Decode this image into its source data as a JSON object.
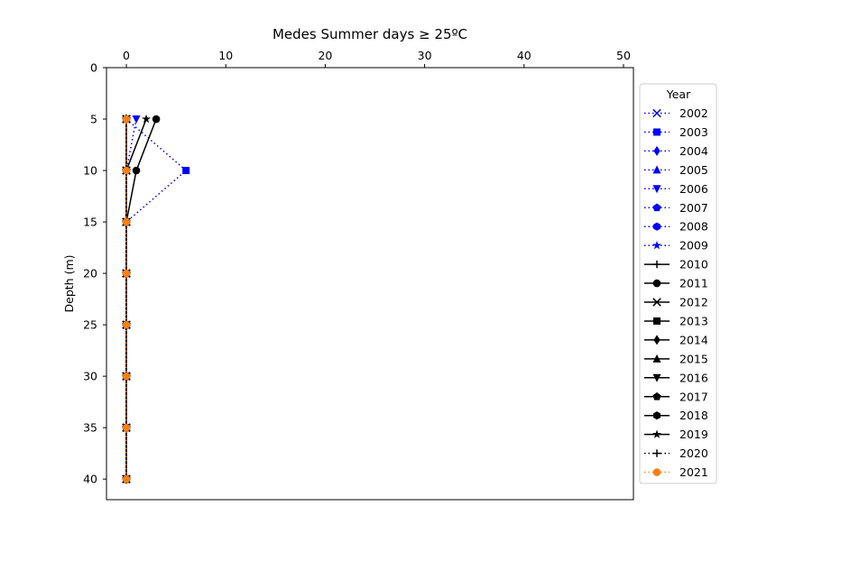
{
  "chart_data": {
    "type": "line",
    "title": "Medes Summer days ≥ 25ºC",
    "xlabel": "",
    "ylabel": "Depth (m)",
    "xlim": [
      -2,
      51
    ],
    "ylim": [
      42,
      0
    ],
    "x_axis_position": "top",
    "y_inverted": true,
    "x_ticks": [
      0,
      10,
      20,
      30,
      40,
      50
    ],
    "y_ticks": [
      0,
      5,
      10,
      15,
      20,
      25,
      30,
      35,
      40
    ],
    "depths": [
      5,
      10,
      15,
      20,
      25,
      30,
      35,
      40
    ],
    "grid": false,
    "legend": {
      "title": "Year",
      "placement": "right-outside"
    },
    "series": [
      {
        "name": "2002",
        "color": "#0000ff",
        "linestyle": "dotted",
        "marker": "x",
        "values": [
          0,
          0,
          0,
          0,
          0,
          0,
          0,
          0
        ]
      },
      {
        "name": "2003",
        "color": "#0000ff",
        "linestyle": "dotted",
        "marker": "square",
        "values": [
          0,
          6,
          0,
          0,
          0,
          0,
          0,
          0
        ]
      },
      {
        "name": "2004",
        "color": "#0000ff",
        "linestyle": "dotted",
        "marker": "diamond",
        "values": [
          0,
          0,
          0,
          0,
          0,
          0,
          0,
          0
        ]
      },
      {
        "name": "2005",
        "color": "#0000ff",
        "linestyle": "dotted",
        "marker": "triangle-up",
        "values": [
          0,
          0,
          0,
          0,
          0,
          0,
          0,
          0
        ]
      },
      {
        "name": "2006",
        "color": "#0000ff",
        "linestyle": "dotted",
        "marker": "triangle-down",
        "values": [
          1,
          0,
          0,
          0,
          0,
          0,
          0,
          0
        ]
      },
      {
        "name": "2007",
        "color": "#0000ff",
        "linestyle": "dotted",
        "marker": "pentagon",
        "values": [
          0,
          0,
          0,
          0,
          0,
          0,
          0,
          0
        ]
      },
      {
        "name": "2008",
        "color": "#0000ff",
        "linestyle": "dotted",
        "marker": "hexagon",
        "values": [
          0,
          0,
          0,
          0,
          0,
          0,
          0,
          0
        ]
      },
      {
        "name": "2009",
        "color": "#0000ff",
        "linestyle": "dotted",
        "marker": "star",
        "values": [
          0,
          0,
          0,
          0,
          0,
          0,
          0,
          0
        ]
      },
      {
        "name": "2010",
        "color": "#000000",
        "linestyle": "solid",
        "marker": "plus",
        "values": [
          0,
          0,
          0,
          0,
          0,
          0,
          0,
          0
        ]
      },
      {
        "name": "2011",
        "color": "#000000",
        "linestyle": "solid",
        "marker": "circle",
        "values": [
          3,
          1,
          0,
          0,
          0,
          0,
          0,
          0
        ]
      },
      {
        "name": "2012",
        "color": "#000000",
        "linestyle": "solid",
        "marker": "x",
        "values": [
          0,
          0,
          0,
          0,
          0,
          0,
          0,
          0
        ]
      },
      {
        "name": "2013",
        "color": "#000000",
        "linestyle": "solid",
        "marker": "square",
        "values": [
          0,
          0,
          0,
          0,
          0,
          0,
          0,
          0
        ]
      },
      {
        "name": "2014",
        "color": "#000000",
        "linestyle": "solid",
        "marker": "diamond",
        "values": [
          0,
          0,
          0,
          0,
          0,
          0,
          0,
          0
        ]
      },
      {
        "name": "2015",
        "color": "#000000",
        "linestyle": "solid",
        "marker": "triangle-up",
        "values": [
          0,
          0,
          0,
          0,
          0,
          0,
          0,
          0
        ]
      },
      {
        "name": "2016",
        "color": "#000000",
        "linestyle": "solid",
        "marker": "triangle-down",
        "values": [
          0,
          0,
          0,
          0,
          0,
          0,
          0,
          0
        ]
      },
      {
        "name": "2017",
        "color": "#000000",
        "linestyle": "solid",
        "marker": "pentagon",
        "values": [
          0,
          0,
          0,
          0,
          0,
          0,
          0,
          0
        ]
      },
      {
        "name": "2018",
        "color": "#000000",
        "linestyle": "solid",
        "marker": "hexagon",
        "values": [
          0,
          0,
          0,
          0,
          0,
          0,
          0,
          0
        ]
      },
      {
        "name": "2019",
        "color": "#000000",
        "linestyle": "solid",
        "marker": "star",
        "values": [
          2,
          0,
          0,
          0,
          0,
          0,
          0,
          0
        ]
      },
      {
        "name": "2020",
        "color": "#000000",
        "linestyle": "dotted",
        "marker": "plus",
        "values": [
          0,
          0,
          0,
          0,
          0,
          0,
          0,
          0
        ]
      },
      {
        "name": "2021",
        "color": "#ff7f0e",
        "linestyle": "dotted",
        "marker": "circle",
        "values": [
          0,
          0,
          0,
          0,
          0,
          0,
          0,
          0
        ]
      }
    ]
  }
}
